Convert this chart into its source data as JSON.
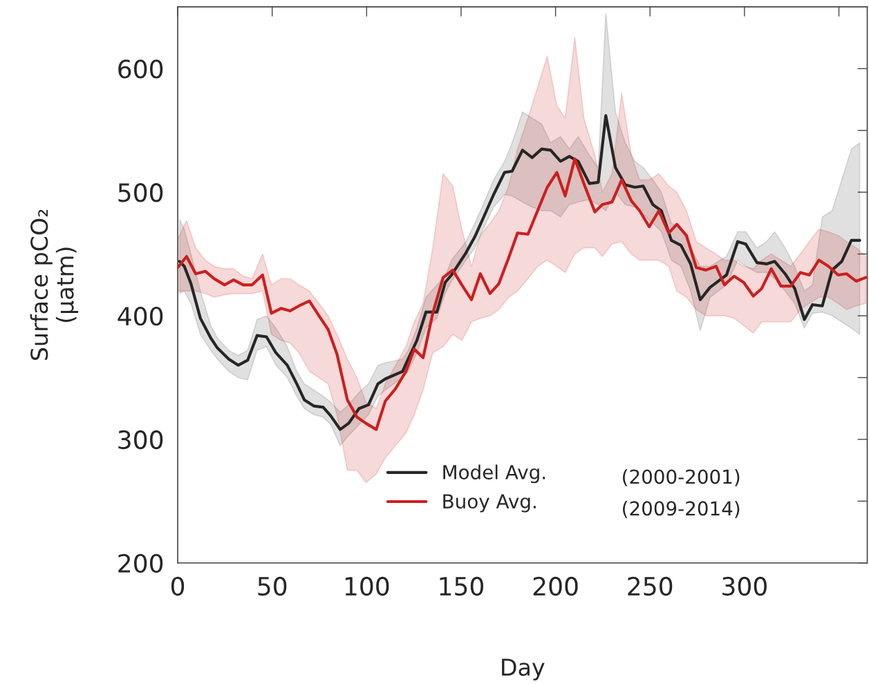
{
  "chart_data": {
    "type": "line",
    "xlabel": "Day",
    "ylabel": "Surface pCO₂\n(µatm)",
    "xlim": [
      0,
      365
    ],
    "xticks": [
      0,
      50,
      100,
      150,
      200,
      250,
      300,
      {
        "value": 350,
        "label": null
      }
    ],
    "ylim": [
      200,
      650
    ],
    "yticks": [
      200,
      {
        "value": 250,
        "label": null
      },
      300,
      {
        "value": 350,
        "label": null
      },
      400,
      {
        "value": 450,
        "label": null
      },
      500,
      {
        "value": 550,
        "label": null
      },
      600
    ],
    "grid": false,
    "legend": "bottom",
    "marker": "none",
    "line_style": "solid",
    "annotations": [
      "(2000-2001)",
      "(2009-2014)"
    ],
    "series": [
      {
        "name": "Model Avg.",
        "color": "#262626",
        "x": [
          1,
          3.5,
          7,
          12,
          17.5,
          21,
          27,
          32,
          37,
          42,
          47,
          52,
          58,
          63,
          67,
          72,
          77,
          81,
          86,
          90.5,
          96,
          101,
          106,
          110,
          119,
          122,
          126.6,
          131.4,
          137.2,
          141.6,
          144.9,
          152.6,
          157.3,
          161.7,
          167.2,
          173,
          177,
          182.5,
          187.6,
          192.7,
          197.4,
          202.6,
          207.3,
          212,
          217.9,
          222.6,
          226.6,
          231.7,
          236.9,
          242,
          246.4,
          251.5,
          256,
          261.3,
          266.4,
          271.5,
          276.6,
          281.8,
          290.5,
          296.4,
          300.7,
          306.6,
          311.7,
          316,
          321.5,
          326.6,
          331.7,
          336,
          341.2,
          346.4,
          351.5,
          356.6,
          361
        ],
        "values": [
          444,
          440,
          426,
          398,
          382,
          374,
          365,
          360,
          364,
          384,
          383,
          370,
          360,
          345,
          332,
          327,
          326,
          319,
          308,
          313,
          325,
          328,
          345,
          349,
          355,
          365,
          380,
          403,
          403,
          427,
          433,
          451,
          464,
          479,
          498,
          516,
          517,
          534,
          528,
          535,
          534,
          525,
          529,
          525,
          507,
          508,
          562,
          520,
          506,
          504,
          505,
          490,
          485,
          461,
          457,
          442,
          413,
          423,
          433,
          460,
          458,
          443,
          442,
          444,
          434,
          422,
          397,
          409,
          408,
          437,
          444,
          461,
          461
        ],
        "lower": [
          418,
          420,
          410,
          385,
          372,
          365,
          355,
          350,
          348,
          372,
          375,
          360,
          350,
          335,
          325,
          320,
          318,
          312,
          295,
          303,
          312,
          320,
          335,
          340,
          350,
          355,
          370,
          390,
          398,
          418,
          428,
          445,
          455,
          470,
          488,
          498,
          497,
          492,
          488,
          485,
          485,
          480,
          490,
          492,
          494,
          490,
          485,
          500,
          490,
          488,
          482,
          475,
          468,
          445,
          440,
          420,
          388,
          415,
          425,
          445,
          440,
          435,
          435,
          430,
          420,
          410,
          390,
          402,
          403,
          400,
          395,
          390,
          385
        ],
        "upper": [
          478,
          470,
          450,
          420,
          392,
          382,
          372,
          368,
          372,
          397,
          400,
          390,
          375,
          355,
          345,
          340,
          335,
          330,
          322,
          328,
          338,
          345,
          360,
          362,
          365,
          372,
          390,
          415,
          425,
          432,
          445,
          460,
          475,
          490,
          510,
          525,
          540,
          565,
          560,
          555,
          540,
          545,
          535,
          545,
          530,
          520,
          645,
          565,
          540,
          525,
          520,
          510,
          500,
          475,
          470,
          455,
          440,
          440,
          448,
          468,
          468,
          455,
          460,
          468,
          455,
          440,
          420,
          425,
          480,
          485,
          510,
          535,
          540
        ]
      },
      {
        "name": "Buoy Avg.",
        "color": "#cc1f1f",
        "x": [
          0,
          4.7,
          9.5,
          14.6,
          19.3,
          24.8,
          29.6,
          34.7,
          39.4,
          44.9,
          49.6,
          54.7,
          59.5,
          64.2,
          69.7,
          74.8,
          79.6,
          84.3,
          89.8,
          94.9,
          99.6,
          105.1,
          109.9,
          115.3,
          120.8,
          125.2,
          129.9,
          135,
          140.5,
          145.6,
          150.4,
          155.5,
          160.2,
          165.3,
          170,
          175.2,
          179.9,
          185.4,
          190.5,
          195.6,
          200.7,
          205.1,
          210.2,
          215,
          220.8,
          224.8,
          229.9,
          235,
          240.1,
          244.5,
          249.6,
          254.7,
          259.9,
          264.2,
          269.3,
          274.5,
          279.6,
          285,
          289.4,
          294.5,
          299.6,
          304.7,
          309.1,
          314.2,
          319.3,
          324.5,
          329.6,
          334.3,
          339.4,
          344.5,
          349.6,
          354,
          359.1,
          364.2
        ],
        "values": [
          439,
          448,
          434,
          436,
          430,
          425,
          429,
          425,
          425,
          433,
          402,
          406,
          404,
          408,
          412,
          400,
          389,
          369,
          332,
          318,
          313,
          308,
          331,
          341,
          355,
          373,
          366,
          402,
          431,
          437,
          425,
          413,
          434,
          418,
          426,
          447,
          467,
          466,
          485,
          504,
          516,
          497,
          527,
          507,
          484,
          490,
          492,
          510,
          493,
          485,
          472,
          485,
          467,
          474,
          465,
          439,
          437,
          440,
          425,
          432,
          427,
          416,
          422,
          438,
          424,
          424,
          435,
          433,
          445,
          440,
          433,
          434,
          428,
          431
        ],
        "lower": [
          420,
          420,
          420,
          418,
          415,
          417,
          418,
          418,
          418,
          420,
          385,
          380,
          378,
          370,
          355,
          350,
          345,
          320,
          275,
          275,
          265,
          272,
          285,
          295,
          305,
          320,
          340,
          370,
          375,
          385,
          380,
          395,
          398,
          400,
          405,
          415,
          420,
          430,
          440,
          445,
          440,
          435,
          450,
          455,
          455,
          448,
          458,
          460,
          450,
          445,
          445,
          445,
          440,
          420,
          415,
          405,
          400,
          400,
          400,
          398,
          392,
          386,
          395,
          395,
          395,
          395,
          405,
          410,
          415,
          415,
          410,
          405,
          408,
          410
        ],
        "upper": [
          462,
          477,
          455,
          445,
          440,
          438,
          438,
          432,
          430,
          450,
          425,
          430,
          430,
          425,
          420,
          410,
          400,
          385,
          365,
          350,
          330,
          325,
          345,
          360,
          375,
          395,
          410,
          455,
          515,
          505,
          470,
          440,
          465,
          475,
          485,
          505,
          535,
          560,
          585,
          610,
          570,
          560,
          625,
          560,
          530,
          500,
          515,
          580,
          530,
          510,
          510,
          515,
          505,
          500,
          485,
          460,
          455,
          450,
          445,
          445,
          440,
          438,
          445,
          450,
          445,
          440,
          450,
          460,
          470,
          468,
          465,
          460,
          455,
          448
        ]
      }
    ]
  }
}
